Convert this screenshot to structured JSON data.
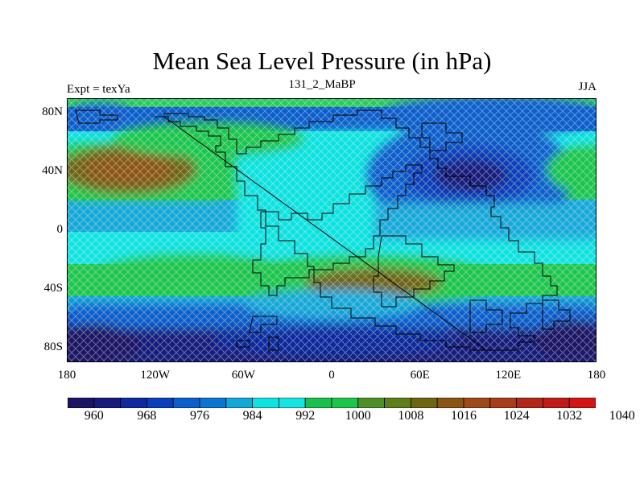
{
  "title": "Mean Sea Level Pressure (in hPa)",
  "left_label": "Expt = texYa",
  "center_label": "131_2_MaBP",
  "right_label": "JJA",
  "x_ticks": [
    "180",
    "120W",
    "60W",
    "0",
    "60E",
    "120E",
    "180"
  ],
  "y_ticks": [
    "80N",
    "40N",
    "0",
    "40S",
    "80S"
  ],
  "colorbar": {
    "labels": [
      "960",
      "968",
      "976",
      "984",
      "992",
      "1000",
      "1008",
      "1016",
      "1024",
      "1032",
      "1040"
    ],
    "colors": [
      "#1a1464",
      "#161a7a",
      "#0f2a9c",
      "#0b3fb8",
      "#0b5ecb",
      "#0a76cf",
      "#14a8d8",
      "#10e2e0",
      "#17e4e2",
      "#19c04c",
      "#1ec54d",
      "#4f8f27",
      "#5f7d18",
      "#6d6512",
      "#8a5413",
      "#9c4a1a",
      "#a73d1b",
      "#b02818",
      "#c01c17",
      "#d21514"
    ]
  },
  "chart_data": {
    "type": "heatmap",
    "title": "Mean Sea Level Pressure (in hPa)",
    "variable": "Mean Sea Level Pressure",
    "units": "hPa",
    "experiment": "texYa",
    "period": "131_2_MaBP",
    "season": "JJA",
    "xlim": [
      -180,
      180
    ],
    "ylim": [
      -90,
      90
    ],
    "x_ticks": [
      "180",
      "120W",
      "60W",
      "0",
      "60E",
      "120E",
      "180"
    ],
    "y_ticks": [
      "80N",
      "40N",
      "0",
      "40S",
      "80S"
    ],
    "colorbar_levels": [
      960,
      968,
      976,
      984,
      992,
      1000,
      1008,
      1016,
      1024,
      1032,
      1040
    ],
    "zonal_profile_hPa": [
      {
        "lat": 90,
        "value": 1002
      },
      {
        "lat": 75,
        "value": 996
      },
      {
        "lat": 60,
        "value": 1004
      },
      {
        "lat": 40,
        "value": 1020
      },
      {
        "lat": 20,
        "value": 1003
      },
      {
        "lat": 0,
        "value": 998
      },
      {
        "lat": -15,
        "value": 1002
      },
      {
        "lat": -30,
        "value": 1012
      },
      {
        "lat": -45,
        "value": 998
      },
      {
        "lat": -60,
        "value": 980
      },
      {
        "lat": -75,
        "value": 962
      },
      {
        "lat": -90,
        "value": 960
      }
    ],
    "regional_features": [
      {
        "name": "north-pacific-high",
        "lon": -145,
        "lat": 38,
        "value": 1022
      },
      {
        "name": "asian-low",
        "lon": 95,
        "lat": 38,
        "value": 970
      },
      {
        "name": "southern-subtropical-high",
        "lon": 45,
        "lat": -32,
        "value": 1020
      }
    ]
  }
}
